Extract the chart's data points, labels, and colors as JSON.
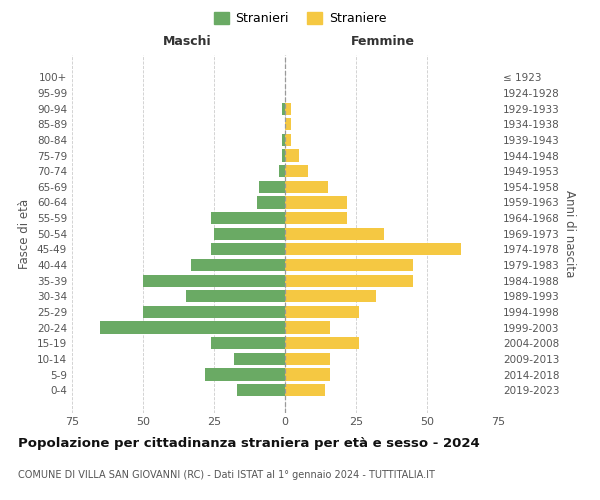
{
  "age_groups": [
    "100+",
    "95-99",
    "90-94",
    "85-89",
    "80-84",
    "75-79",
    "70-74",
    "65-69",
    "60-64",
    "55-59",
    "50-54",
    "45-49",
    "40-44",
    "35-39",
    "30-34",
    "25-29",
    "20-24",
    "15-19",
    "10-14",
    "5-9",
    "0-4"
  ],
  "birth_years": [
    "≤ 1923",
    "1924-1928",
    "1929-1933",
    "1934-1938",
    "1939-1943",
    "1944-1948",
    "1949-1953",
    "1954-1958",
    "1959-1963",
    "1964-1968",
    "1969-1973",
    "1974-1978",
    "1979-1983",
    "1984-1988",
    "1989-1993",
    "1994-1998",
    "1999-2003",
    "2004-2008",
    "2009-2013",
    "2014-2018",
    "2019-2023"
  ],
  "maschi": [
    0,
    0,
    1,
    0,
    1,
    1,
    2,
    9,
    10,
    26,
    25,
    26,
    33,
    50,
    35,
    50,
    65,
    26,
    18,
    28,
    17
  ],
  "femmine": [
    0,
    0,
    2,
    2,
    2,
    5,
    8,
    15,
    22,
    22,
    35,
    62,
    45,
    45,
    32,
    26,
    16,
    26,
    16,
    16,
    14
  ],
  "maschi_color": "#6aaa64",
  "femmine_color": "#f5c842",
  "background_color": "#ffffff",
  "grid_color": "#cccccc",
  "title": "Popolazione per cittadinanza straniera per età e sesso - 2024",
  "subtitle": "COMUNE DI VILLA SAN GIOVANNI (RC) - Dati ISTAT al 1° gennaio 2024 - TUTTITALIA.IT",
  "xlabel_left": "Maschi",
  "xlabel_right": "Femmine",
  "ylabel_left": "Fasce di età",
  "ylabel_right": "Anni di nascita",
  "legend_maschi": "Stranieri",
  "legend_femmine": "Straniere",
  "xlim": 75
}
